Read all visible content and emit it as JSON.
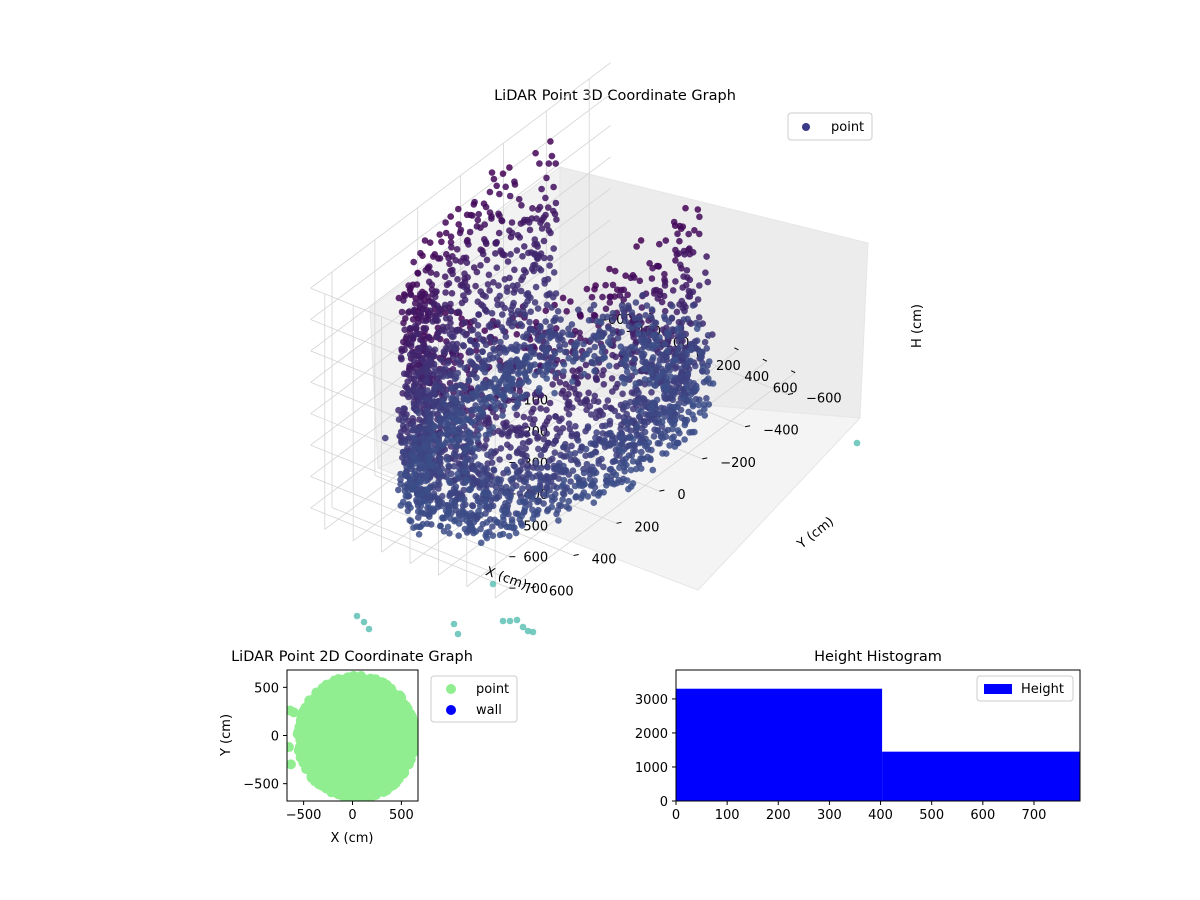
{
  "colors": {
    "point3d_top": "#440154",
    "point3d_bottom": "#3b528b",
    "point3d_outlier": "#5ec1b4",
    "point2d": "#90ee90",
    "wall": "#0000ff",
    "hist": "#0000ff"
  },
  "chart_data": [
    {
      "type": "scatter",
      "projection": "3d",
      "title": "LiDAR Point 3D Coordinate Graph",
      "xlabel": "X (cm)",
      "ylabel": "Y (cm)",
      "zlabel": "H (cm)",
      "x_ticks": [
        "−600",
        "−400",
        "−200",
        "0",
        "200",
        "400",
        "600"
      ],
      "y_ticks": [
        "600",
        "400",
        "200",
        "0",
        "−200",
        "−400",
        "−600"
      ],
      "z_ticks": [
        "0",
        "100",
        "200",
        "300",
        "400",
        "500",
        "600",
        "700"
      ],
      "xlim": [
        -700,
        700
      ],
      "ylim": [
        -700,
        700
      ],
      "zlim": [
        750,
        0
      ],
      "z_inverted": true,
      "legend": {
        "labels": [
          "point"
        ],
        "placement": "top-right"
      },
      "series": [
        {
          "name": "point",
          "description_of_shape": "dense ring-shaped wall of points around the origin, radius about 550-650 cm, spanning heights 0 to about 720 cm, with a sparse scatter of outlier points",
          "ring_radius": 600,
          "height_range": [
            0,
            720
          ],
          "outliers": [
            {
              "x": 500,
              "y": 300,
              "h": 60
            },
            {
              "x": 550,
              "y": 150,
              "h": 120
            },
            {
              "x": 600,
              "y": 50,
              "h": 200
            },
            {
              "x": 650,
              "y": -100,
              "h": 300
            },
            {
              "x": 620,
              "y": -300,
              "h": 420
            },
            {
              "x": 450,
              "y": 500,
              "h": 40
            },
            {
              "x": 300,
              "y": 550,
              "h": 30
            },
            {
              "x": -100,
              "y": 450,
              "h": 250
            },
            {
              "x": 100,
              "y": 200,
              "h": 300
            },
            {
              "x": -300,
              "y": 300,
              "h": 350
            },
            {
              "x": 200,
              "y": 400,
              "h": 450
            },
            {
              "x": -400,
              "y": 550,
              "h": 500
            },
            {
              "x": -550,
              "y": -550,
              "h": 720
            },
            {
              "x": -350,
              "y": -600,
              "h": 720
            },
            {
              "x": -150,
              "y": -650,
              "h": 720
            },
            {
              "x": -60,
              "y": -680,
              "h": 720
            }
          ]
        }
      ]
    },
    {
      "type": "scatter",
      "title": "LiDAR Point 2D Coordinate Graph",
      "xlabel": "X (cm)",
      "ylabel": "Y (cm)",
      "x_ticks": [
        -500,
        0,
        500
      ],
      "y_ticks": [
        500,
        0,
        -500
      ],
      "xlim": [
        -670,
        670
      ],
      "ylim": [
        -680,
        680
      ],
      "legend": {
        "labels": [
          "point",
          "wall"
        ],
        "placement": "outside-right"
      },
      "series": [
        {
          "name": "point",
          "description_of_shape": "filled irregular disc of points centred near the origin, radius about 600 cm"
        },
        {
          "name": "wall",
          "points": []
        }
      ]
    },
    {
      "type": "bar",
      "title": "Height Histogram",
      "xlabel": "",
      "ylabel": "",
      "x_ticks": [
        0,
        100,
        200,
        300,
        400,
        500,
        600,
        700
      ],
      "y_ticks": [
        0,
        1000,
        2000,
        3000
      ],
      "xlim": [
        0,
        790
      ],
      "ylim": [
        0,
        3850
      ],
      "legend": {
        "labels": [
          "Height"
        ],
        "placement": "top-right"
      },
      "bins": [
        {
          "start": 0,
          "end": 403,
          "count": 3300
        },
        {
          "start": 403,
          "end": 790,
          "count": 1450
        }
      ]
    }
  ]
}
